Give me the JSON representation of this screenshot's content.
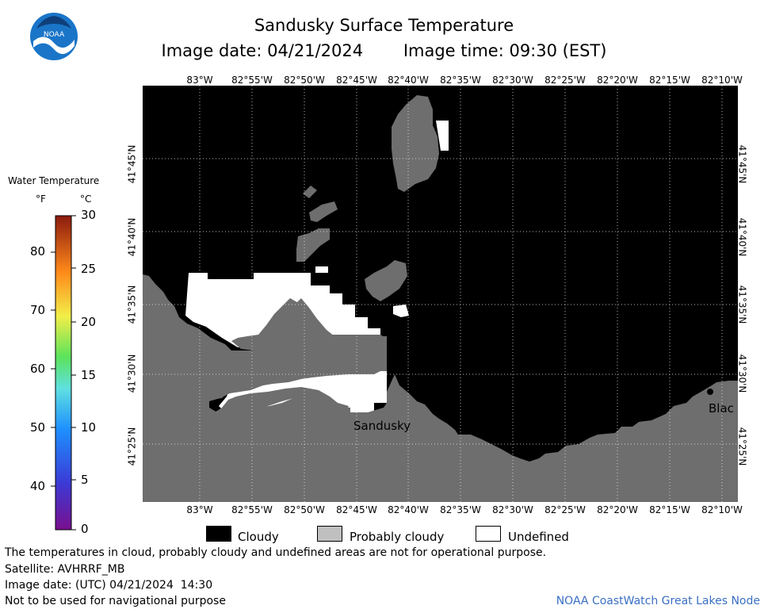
{
  "header": {
    "title": "Sandusky Surface Temperature",
    "image_date": "Image date: 04/21/2024",
    "image_time": "Image time: 09:30 (EST)"
  },
  "logo": {
    "text": "NOAA",
    "icon": "noaa-logo-icon"
  },
  "map": {
    "lon_labels": [
      "83°W",
      "82°55'W",
      "82°50'W",
      "82°45'W",
      "82°40'W",
      "82°35'W",
      "82°30'W",
      "82°25'W",
      "82°20'W",
      "82°15'W",
      "82°10'W"
    ],
    "lat_labels": [
      "41°45'N",
      "41°40'N",
      "41°35'N",
      "41°30'N",
      "41°25'N"
    ],
    "place_labels": {
      "sandusky": "Sandusky",
      "blackrock": "Blac"
    },
    "colors": {
      "cloudy": "#000000",
      "probably_cloudy": "#6e6e6e",
      "undefined": "#ffffff"
    }
  },
  "legend": {
    "title": "Water Temperature",
    "unit_f": "°F",
    "unit_c": "°C",
    "f_ticks": [
      "80",
      "70",
      "60",
      "50",
      "40"
    ],
    "c_ticks": [
      "30",
      "25",
      "20",
      "15",
      "10",
      "5",
      "0"
    ]
  },
  "key": {
    "cloudy": "Cloudy",
    "probably_cloudy": "Probably cloudy",
    "undefined": "Undefined"
  },
  "notes": {
    "line1": "The temperatures in cloud, probably cloudy and undefined areas are not for operational purpose.",
    "line2": "Satellite: AVHRRF_MB",
    "line3": "Image date: (UTC) 04/21/2024  14:30",
    "line4": "Not to be used for navigational purpose"
  },
  "credit": "NOAA CoastWatch Great Lakes Node"
}
